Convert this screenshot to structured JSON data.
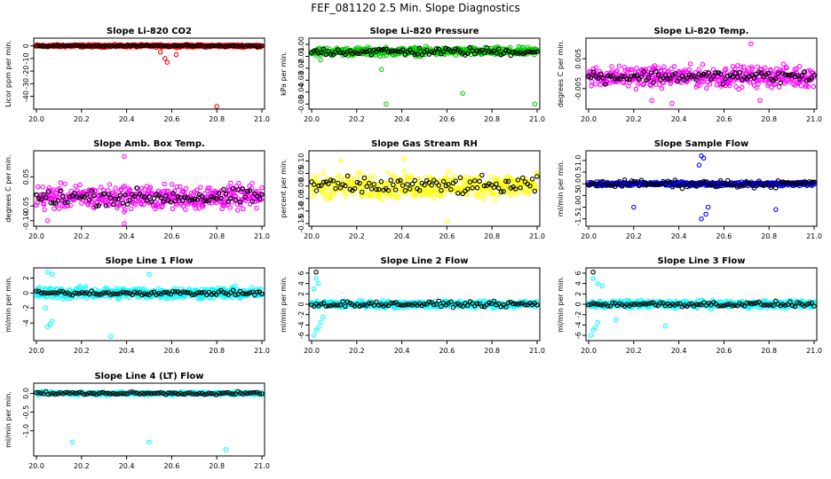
{
  "page": {
    "title": "FEF_081120  2.5 Min. Slope Diagnostics"
  },
  "chart_data": [
    {
      "type": "scatter",
      "title": "Slope Li-820 CO2",
      "ylabel": "Licor ppm per min.",
      "color": "#ff0000",
      "xlim": [
        20.0,
        21.0
      ],
      "ylim": [
        -48,
        4
      ],
      "xticks": [
        "20.0",
        "20.2",
        "20.4",
        "20.6",
        "20.8",
        "21.0"
      ],
      "yticks": [
        {
          "v": 0,
          "label": "0"
        },
        {
          "v": -10,
          "label": "-10"
        },
        {
          "v": -20,
          "label": "-20"
        },
        {
          "v": -30,
          "label": "-30"
        },
        {
          "v": -40,
          "label": "-40"
        }
      ],
      "band": {
        "center": 0,
        "spread": 1.5
      },
      "outliers": [
        [
          20.55,
          -5
        ],
        [
          20.57,
          -10
        ],
        [
          20.58,
          -13
        ],
        [
          20.62,
          -7
        ],
        [
          20.8,
          -48
        ]
      ],
      "black_spread": 1.0
    },
    {
      "type": "scatter",
      "title": "Slope Li-820 Pressure",
      "ylabel": "kPa per min.",
      "color": "#00cc00",
      "xlim": [
        20.0,
        21.0
      ],
      "ylim": [
        -0.052,
        0.003
      ],
      "xticks": [
        "20.0",
        "20.2",
        "20.4",
        "20.6",
        "20.8",
        "21.0"
      ],
      "yticks": [
        {
          "v": 0,
          "label": "0.00"
        },
        {
          "v": -0.01,
          "label": "-0.01"
        },
        {
          "v": -0.02,
          "label": "-0.02"
        },
        {
          "v": -0.03,
          "label": "-0.03"
        },
        {
          "v": -0.04,
          "label": "-0.04"
        },
        {
          "v": -0.05,
          "label": "-0.05"
        }
      ],
      "band": {
        "center": -0.006,
        "spread": 0.005
      },
      "outliers": [
        [
          20.33,
          -0.05
        ],
        [
          20.67,
          -0.041
        ],
        [
          20.99,
          -0.05
        ],
        [
          20.31,
          -0.021
        ],
        [
          20.04,
          -0.013
        ]
      ],
      "black_spread": 0.005
    },
    {
      "type": "scatter",
      "title": "Slope Li-820 Temp.",
      "ylabel": "degrees C per min.",
      "color": "#ff00ff",
      "xlim": [
        20.0,
        21.0
      ],
      "ylim": [
        -0.011,
        0.011
      ],
      "xticks": [
        "20.0",
        "20.2",
        "20.4",
        "20.6",
        "20.8",
        "21.0"
      ],
      "yticks": [
        {
          "v": 0.005,
          "label": "0.005"
        },
        {
          "v": -0.005,
          "label": "-0.005"
        }
      ],
      "band": {
        "center": -0.001,
        "spread": 0.005
      },
      "outliers": [
        [
          20.72,
          0.01
        ],
        [
          20.28,
          -0.009
        ],
        [
          20.37,
          -0.01
        ],
        [
          20.76,
          -0.009
        ]
      ],
      "black_spread": 0.003
    },
    {
      "type": "scatter",
      "title": "Slope Amb. Box Temp.",
      "ylabel": "degrees C per min.",
      "color": "#ff00ff",
      "xlim": [
        20.0,
        21.0
      ],
      "ylim": [
        -0.11,
        0.13
      ],
      "xticks": [
        "20.0",
        "20.2",
        "20.4",
        "20.6",
        "20.8",
        "21.0"
      ],
      "yticks": [
        {
          "v": 0.05,
          "label": "0.05"
        },
        {
          "v": -0.05,
          "label": "-0.05"
        },
        {
          "v": -0.1,
          "label": "-0.10"
        }
      ],
      "band": {
        "center": -0.02,
        "spread": 0.06
      },
      "outliers": [
        [
          20.39,
          0.12
        ],
        [
          20.39,
          -0.11
        ],
        [
          20.05,
          -0.1
        ]
      ],
      "black_spread": 0.04
    },
    {
      "type": "scatter",
      "title": "Slope Gas Stream RH",
      "ylabel": "percent per min.",
      "color": "#ffff00",
      "xlim": [
        20.0,
        21.0
      ],
      "ylim": [
        -0.15,
        0.13
      ],
      "xticks": [
        "20.0",
        "20.2",
        "20.4",
        "20.6",
        "20.8",
        "21.0"
      ],
      "yticks": [
        {
          "v": 0.1,
          "label": "0.10"
        },
        {
          "v": 0.05,
          "label": "0.05"
        },
        {
          "v": 0,
          "label": "0.00"
        },
        {
          "v": -0.05,
          "label": "-0.05"
        },
        {
          "v": -0.1,
          "label": "-0.10"
        },
        {
          "v": -0.15,
          "label": "-0.15"
        }
      ],
      "band": {
        "center": 0.0,
        "spread": 0.07
      },
      "outliers": [
        [
          20.41,
          0.11
        ],
        [
          20.6,
          -0.14
        ],
        [
          20.13,
          0.1
        ]
      ],
      "black_spread": 0.05
    },
    {
      "type": "scatter",
      "title": "Slope Sample Flow",
      "ylabel": "ml/min per min.",
      "color": "#0000ff",
      "xlim": [
        20.0,
        21.0
      ],
      "ylim": [
        -1.7,
        1.3
      ],
      "xticks": [
        "20.0",
        "20.2",
        "20.4",
        "20.6",
        "20.8",
        "21.0"
      ],
      "yticks": [
        {
          "v": 1.0,
          "label": "1.0"
        },
        {
          "v": 0.5,
          "label": "0.5"
        },
        {
          "v": 0,
          "label": "0.0"
        },
        {
          "v": -0.5,
          "label": "-0.5"
        },
        {
          "v": -1.0,
          "label": "-1.0"
        },
        {
          "v": -1.5,
          "label": "-1.5"
        }
      ],
      "band": {
        "center": 0.0,
        "spread": 0.12
      },
      "outliers": [
        [
          20.5,
          1.2
        ],
        [
          20.51,
          1.1
        ],
        [
          20.5,
          -1.5
        ],
        [
          20.52,
          -1.3
        ],
        [
          20.53,
          -1.0
        ],
        [
          20.2,
          -1.0
        ],
        [
          20.83,
          -1.1
        ],
        [
          20.49,
          0.8
        ]
      ],
      "black_spread": 0.25
    },
    {
      "type": "scatter",
      "title": "Slope Line 1 Flow",
      "ylabel": "ml/min per min.",
      "color": "#00ffff",
      "xlim": [
        20.0,
        21.0
      ],
      "ylim": [
        -6,
        3
      ],
      "xticks": [
        "20.0",
        "20.2",
        "20.4",
        "20.6",
        "20.8",
        "21.0"
      ],
      "yticks": [
        {
          "v": 2,
          "label": "2"
        },
        {
          "v": 0,
          "label": "0"
        },
        {
          "v": -2,
          "label": "-2"
        },
        {
          "v": -4,
          "label": "-4"
        }
      ],
      "band": {
        "center": 0.0,
        "spread": 1.1
      },
      "outliers": [
        [
          20.05,
          -4.5
        ],
        [
          20.06,
          -4.2
        ],
        [
          20.07,
          -3.8
        ],
        [
          20.04,
          -2.0
        ],
        [
          20.33,
          -5.8
        ],
        [
          20.5,
          2.5
        ],
        [
          20.05,
          2.8
        ],
        [
          20.07,
          2.5
        ]
      ],
      "black_spread": 0.4
    },
    {
      "type": "scatter",
      "title": "Slope Line 2 Flow",
      "ylabel": "ml/min per min.",
      "color": "#00ffff",
      "xlim": [
        20.0,
        21.0
      ],
      "ylim": [
        -6.5,
        6.5
      ],
      "xticks": [
        "20.0",
        "20.2",
        "20.4",
        "20.6",
        "20.8",
        "21.0"
      ],
      "yticks": [
        {
          "v": 6,
          "label": "6"
        },
        {
          "v": 4,
          "label": "4"
        },
        {
          "v": 2,
          "label": "2"
        },
        {
          "v": 0,
          "label": "0"
        },
        {
          "v": -2,
          "label": "-2"
        },
        {
          "v": -4,
          "label": "-4"
        },
        {
          "v": -6,
          "label": "-6"
        }
      ],
      "band": {
        "center": 0.0,
        "spread": 1.0
      },
      "outliers": [
        [
          20.01,
          -6
        ],
        [
          20.02,
          -5
        ],
        [
          20.03,
          -4.5
        ],
        [
          20.04,
          -3.5
        ],
        [
          20.02,
          5
        ],
        [
          20.03,
          4
        ],
        [
          20.01,
          3
        ],
        [
          20.05,
          -2.5
        ]
      ],
      "black_spread": 0.7,
      "black_outliers": [
        [
          20.02,
          6.2
        ]
      ]
    },
    {
      "type": "scatter",
      "title": "Slope Line 3 Flow",
      "ylabel": "ml/min per min.",
      "color": "#00ffff",
      "xlim": [
        20.0,
        21.0
      ],
      "ylim": [
        -6.5,
        6.5
      ],
      "xticks": [
        "20.0",
        "20.2",
        "20.4",
        "20.6",
        "20.8",
        "21.0"
      ],
      "yticks": [
        {
          "v": 6,
          "label": "6"
        },
        {
          "v": 4,
          "label": "4"
        },
        {
          "v": 2,
          "label": "2"
        },
        {
          "v": 0,
          "label": "0"
        },
        {
          "v": -2,
          "label": "-2"
        },
        {
          "v": -4,
          "label": "-4"
        },
        {
          "v": -6,
          "label": "-6"
        }
      ],
      "band": {
        "center": 0.0,
        "spread": 1.0
      },
      "outliers": [
        [
          20.01,
          -6
        ],
        [
          20.02,
          -5
        ],
        [
          20.03,
          -4.5
        ],
        [
          20.04,
          -3.5
        ],
        [
          20.02,
          5
        ],
        [
          20.04,
          4
        ],
        [
          20.06,
          3.5
        ],
        [
          20.12,
          -3
        ],
        [
          20.34,
          -4.2
        ]
      ],
      "black_spread": 0.7,
      "black_outliers": [
        [
          20.02,
          6.2
        ]
      ]
    },
    {
      "type": "scatter",
      "title": "Slope Line 4 (LT) Flow",
      "ylabel": "ml/min per min.",
      "color": "#00ffff",
      "xlim": [
        20.0,
        21.0
      ],
      "ylim": [
        -1.6,
        0.2
      ],
      "xticks": [
        "20.0",
        "20.2",
        "20.4",
        "20.6",
        "20.8",
        "21.0"
      ],
      "yticks": [
        {
          "v": 0.0,
          "label": "0.0"
        },
        {
          "v": -0.5,
          "label": "-0.5"
        },
        {
          "v": -1.0,
          "label": "-1.0"
        }
      ],
      "band": {
        "center": 0.0,
        "spread": 0.06
      },
      "outliers": [
        [
          20.16,
          -1.3
        ],
        [
          20.5,
          -1.3
        ],
        [
          20.84,
          -1.5
        ]
      ],
      "black_spread": 0.05
    }
  ]
}
